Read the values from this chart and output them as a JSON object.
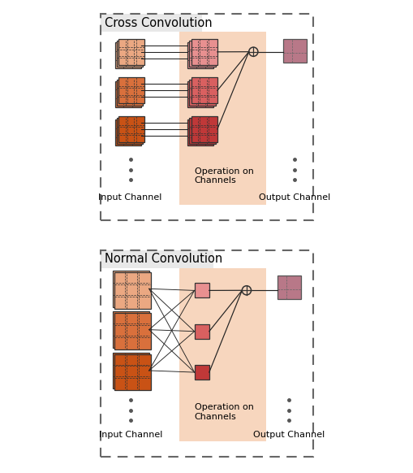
{
  "fig_width": 5.1,
  "fig_height": 5.82,
  "dpi": 100,
  "bg_color": "#ffffff",
  "panel_bg": "#e8e8e8",
  "cross_title": "Cross Convolution",
  "normal_title": "Normal Convolution",
  "input_label": "Input Channel",
  "output_label": "Output Channel",
  "op_label": "Operation on\nChannels",
  "orange_colors": [
    "#EBA882",
    "#D9703C",
    "#C95215"
  ],
  "red_colors": [
    "#E89090",
    "#D96060",
    "#C03838"
  ],
  "pink_out": "#B87888",
  "highlight_bg": "#F5C9A8",
  "dashed_border": "#666666",
  "line_color": "#222222"
}
